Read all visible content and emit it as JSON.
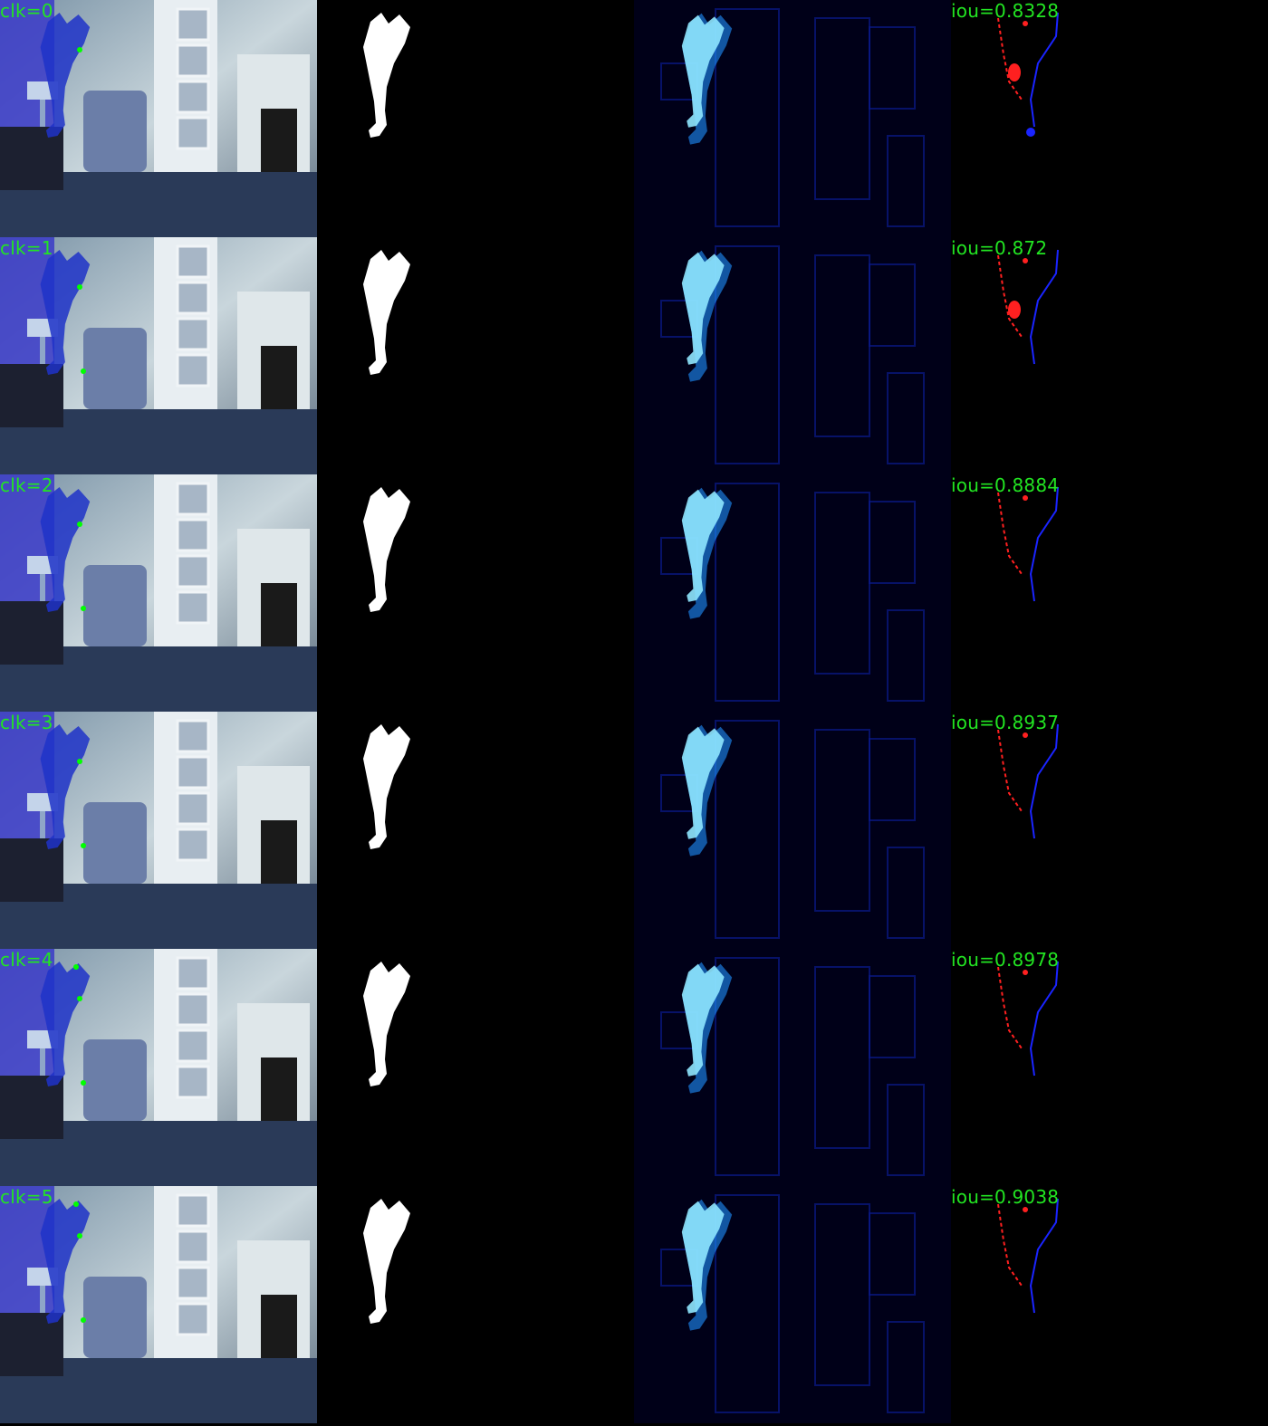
{
  "rows": [
    {
      "clicks_label": "clk=0",
      "iou_label": "iou=0.8328"
    },
    {
      "clicks_label": "clk=1",
      "iou_label": "iou=0.872"
    },
    {
      "clicks_label": "clk=2",
      "iou_label": "iou=0.8884"
    },
    {
      "clicks_label": "clk=3",
      "iou_label": "iou=0.8937"
    },
    {
      "clicks_label": "clk=4",
      "iou_label": "iou=0.8978"
    },
    {
      "clicks_label": "clk=5",
      "iou_label": "iou=0.9038"
    }
  ],
  "colors": {
    "label_green": "#22e522",
    "click_point": "#00ff00",
    "false_positive": "#ff2020",
    "false_negative": "#1a24ff",
    "mask_white": "#ffffff"
  }
}
